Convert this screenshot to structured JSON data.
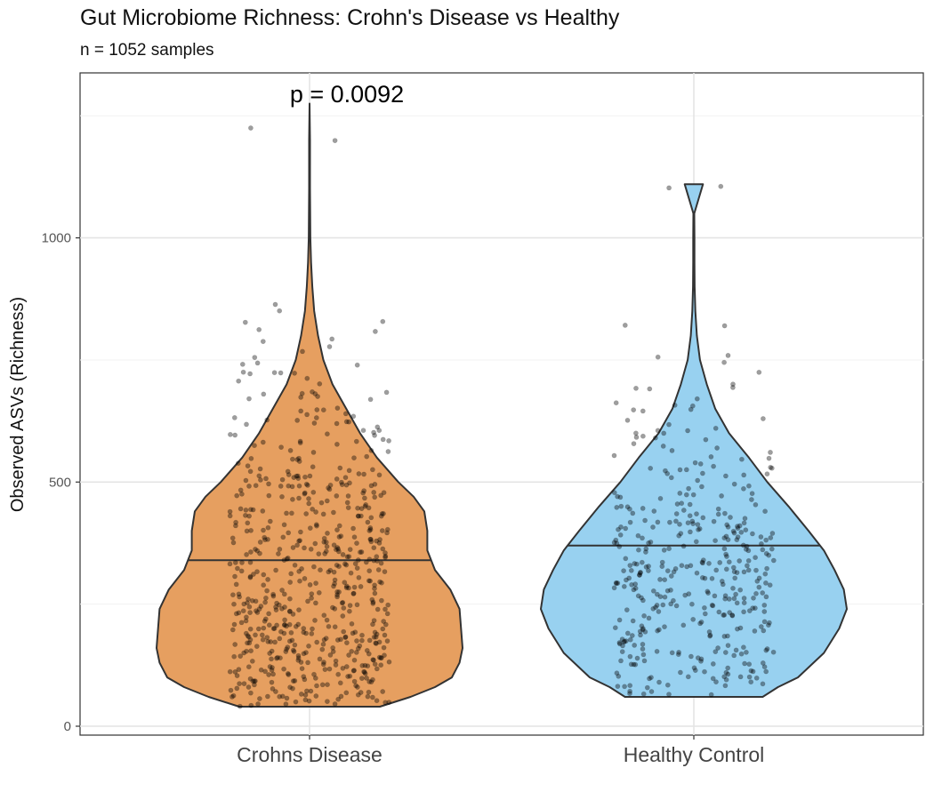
{
  "chart_data": {
    "type": "violin",
    "title": "Gut Microbiome Richness: Crohn's Disease vs Healthy",
    "subtitle": "n = 1052 samples",
    "xlabel": "",
    "ylabel": "Observed ASVs (Richness)",
    "categories": [
      "Crohns Disease",
      "Healthy Control"
    ],
    "ylim": [
      -20,
      1265
    ],
    "yticks": [
      0,
      500,
      1000
    ],
    "grid": true,
    "annotation": "p = 0.0092",
    "colors": {
      "Crohns Disease": "#E69F60",
      "Healthy Control": "#98D1F0"
    },
    "groups": [
      {
        "name": "Crohns Disease",
        "min": 40,
        "max": 1275,
        "median": 340,
        "density": [
          [
            40,
            0.46
          ],
          [
            60,
            0.66
          ],
          [
            80,
            0.82
          ],
          [
            100,
            0.93
          ],
          [
            130,
            0.98
          ],
          [
            160,
            1.0
          ],
          [
            200,
            0.99
          ],
          [
            240,
            0.98
          ],
          [
            280,
            0.92
          ],
          [
            320,
            0.82
          ],
          [
            360,
            0.77
          ],
          [
            400,
            0.77
          ],
          [
            440,
            0.75
          ],
          [
            470,
            0.68
          ],
          [
            500,
            0.58
          ],
          [
            550,
            0.44
          ],
          [
            600,
            0.33
          ],
          [
            650,
            0.24
          ],
          [
            700,
            0.15
          ],
          [
            750,
            0.09
          ],
          [
            800,
            0.055
          ],
          [
            850,
            0.03
          ],
          [
            900,
            0.018
          ],
          [
            950,
            0.01
          ],
          [
            1000,
            0.005
          ],
          [
            1100,
            0.003
          ],
          [
            1200,
            0.003
          ],
          [
            1275,
            0.0
          ]
        ]
      },
      {
        "name": "Healthy Control",
        "min": 60,
        "max": 1110,
        "median": 370,
        "density": [
          [
            60,
            0.45
          ],
          [
            80,
            0.55
          ],
          [
            100,
            0.68
          ],
          [
            150,
            0.85
          ],
          [
            200,
            0.95
          ],
          [
            240,
            1.0
          ],
          [
            280,
            0.98
          ],
          [
            320,
            0.92
          ],
          [
            360,
            0.85
          ],
          [
            400,
            0.75
          ],
          [
            450,
            0.62
          ],
          [
            500,
            0.48
          ],
          [
            550,
            0.36
          ],
          [
            600,
            0.23
          ],
          [
            650,
            0.14
          ],
          [
            700,
            0.085
          ],
          [
            750,
            0.04
          ],
          [
            800,
            0.02
          ],
          [
            850,
            0.01
          ],
          [
            900,
            0.005
          ],
          [
            950,
            0.004
          ],
          [
            1000,
            0.004
          ],
          [
            1050,
            0.003
          ],
          [
            1110,
            0.06
          ]
        ]
      }
    ]
  }
}
